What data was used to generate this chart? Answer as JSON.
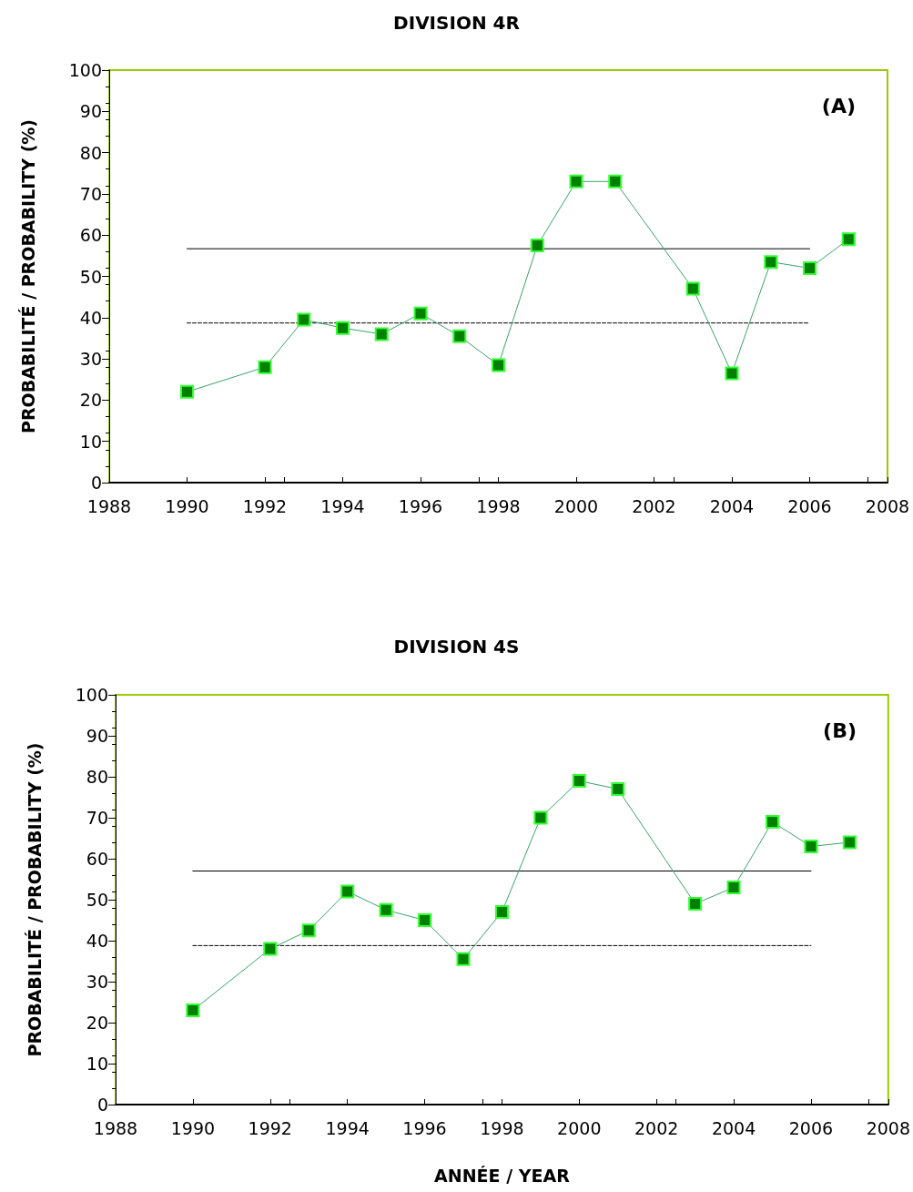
{
  "chart_data": [
    {
      "type": "line",
      "title": "DIVISION 4R",
      "ylabel": "PROBABILITÉ / PROBABILITY (%)",
      "annotations": [
        "(A)"
      ],
      "xlim": [
        1988,
        2008
      ],
      "xticks": [
        1988,
        1990,
        1992,
        1994,
        1996,
        1998,
        2000,
        2002,
        2004,
        2006,
        2008
      ],
      "ylim": [
        0,
        100
      ],
      "yticks": [
        0,
        10,
        20,
        30,
        40,
        50,
        60,
        70,
        80,
        90,
        100
      ],
      "grid": false,
      "marker": "square",
      "line_style": "solid",
      "series": [
        {
          "color": "#008000",
          "x": [
            1990,
            1992,
            1993,
            1994,
            1995,
            1996,
            1997,
            1998,
            1999,
            2000,
            2001,
            2003,
            2004,
            2005,
            2006,
            2007
          ],
          "values": [
            22,
            28,
            39.5,
            37.5,
            36,
            41,
            35.5,
            28.5,
            57.5,
            73,
            73,
            47,
            26.5,
            53.5,
            52,
            59
          ]
        },
        {
          "color": "#000000",
          "x": [
            1990,
            2006
          ],
          "values": [
            56.7,
            56.7
          ],
          "marker": "none",
          "line_style": "solid"
        },
        {
          "color": "#000000",
          "x": [
            1990,
            2006
          ],
          "values": [
            38.7,
            38.7
          ],
          "marker": "none",
          "line_style": "dashed"
        }
      ]
    },
    {
      "type": "line",
      "title": "DIVISION 4S",
      "xlabel": "ANNÉE / YEAR",
      "ylabel": "PROBABILITÉ / PROBABILITY (%)",
      "annotations": [
        "(B)"
      ],
      "xlim": [
        1988,
        2008
      ],
      "xticks": [
        1988,
        1990,
        1992,
        1994,
        1996,
        1998,
        2000,
        2002,
        2004,
        2006,
        2008
      ],
      "ylim": [
        0,
        100
      ],
      "yticks": [
        0,
        10,
        20,
        30,
        40,
        50,
        60,
        70,
        80,
        90,
        100
      ],
      "grid": false,
      "marker": "square",
      "line_style": "solid",
      "series": [
        {
          "color": "#008000",
          "x": [
            1990,
            1992,
            1993,
            1994,
            1995,
            1996,
            1997,
            1998,
            1999,
            2000,
            2001,
            2003,
            2004,
            2005,
            2006,
            2007
          ],
          "values": [
            23,
            38,
            42.5,
            52,
            47.5,
            45,
            35.5,
            47,
            70,
            79,
            77,
            49,
            53,
            69,
            63,
            64
          ]
        },
        {
          "color": "#000000",
          "x": [
            1990,
            2006
          ],
          "values": [
            57,
            57
          ],
          "marker": "none",
          "line_style": "solid"
        },
        {
          "color": "#000000",
          "x": [
            1990,
            2006
          ],
          "values": [
            38.8,
            38.8
          ],
          "marker": "none",
          "line_style": "dashed"
        }
      ]
    }
  ]
}
